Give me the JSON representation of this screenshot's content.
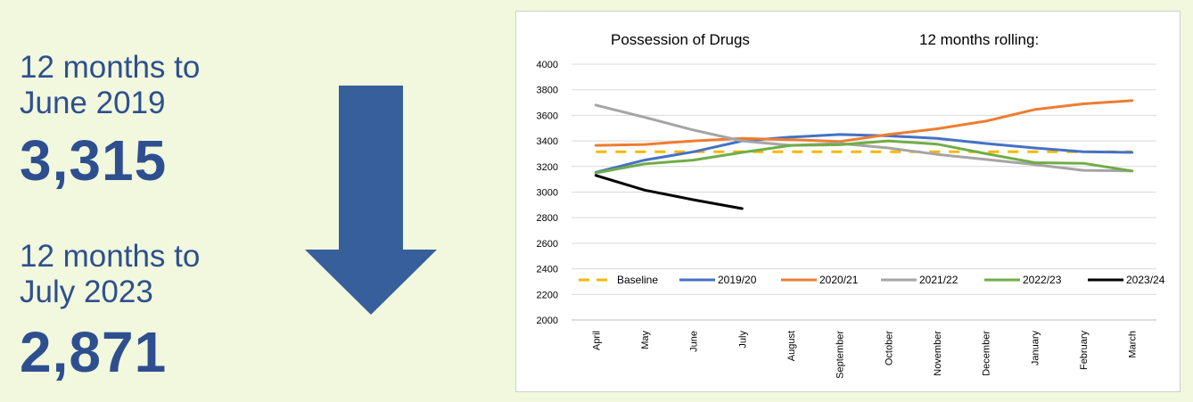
{
  "left_panel": {
    "period_1": [
      "12 months to",
      "June 2019"
    ],
    "value_1": "3,315",
    "period_2": [
      "12 months to",
      "July 2023"
    ],
    "value_2": "2,871",
    "arrow_direction": "down",
    "colors": {
      "text": "#2e4f8f",
      "arrow": "#365f9c",
      "background": "#f1f8dd"
    }
  },
  "chart_data": {
    "type": "line",
    "title": "Possession of Drugs",
    "subtitle": "12 months rolling:",
    "categories": [
      "April",
      "May",
      "June",
      "July",
      "August",
      "September",
      "October",
      "November",
      "December",
      "January",
      "February",
      "March"
    ],
    "ylim": [
      2000,
      4000
    ],
    "yticks": [
      2000,
      2200,
      2400,
      2600,
      2800,
      3000,
      3200,
      3400,
      3600,
      3800,
      4000
    ],
    "grid": true,
    "legend_position": "bottom-inside",
    "series": [
      {
        "name": "Baseline",
        "color": "#f5b800",
        "dashed": true,
        "values": [
          3315,
          3315,
          3315,
          3315,
          3315,
          3315,
          3315,
          3315,
          3315,
          3315,
          3315,
          3315
        ]
      },
      {
        "name": "2019/20",
        "color": "#4472c4",
        "dashed": false,
        "values": [
          3155,
          3250,
          3315,
          3400,
          3430,
          3450,
          3440,
          3420,
          3380,
          3345,
          3315,
          3310
        ]
      },
      {
        "name": "2020/21",
        "color": "#ed7d31",
        "dashed": false,
        "values": [
          3365,
          3372,
          3400,
          3420,
          3410,
          3395,
          3450,
          3495,
          3555,
          3645,
          3690,
          3715
        ]
      },
      {
        "name": "2021/22",
        "color": "#a5a5a5",
        "dashed": false,
        "values": [
          3680,
          3585,
          3485,
          3400,
          3365,
          3380,
          3345,
          3295,
          3255,
          3215,
          3170,
          3165
        ]
      },
      {
        "name": "2022/23",
        "color": "#70ad47",
        "dashed": false,
        "values": [
          3150,
          3220,
          3250,
          3310,
          3365,
          3370,
          3400,
          3375,
          3300,
          3230,
          3225,
          3165
        ]
      },
      {
        "name": "2023/24",
        "color": "#000000",
        "dashed": false,
        "values": [
          3130,
          3015,
          2940,
          2871,
          null,
          null,
          null,
          null,
          null,
          null,
          null,
          null
        ]
      }
    ]
  }
}
